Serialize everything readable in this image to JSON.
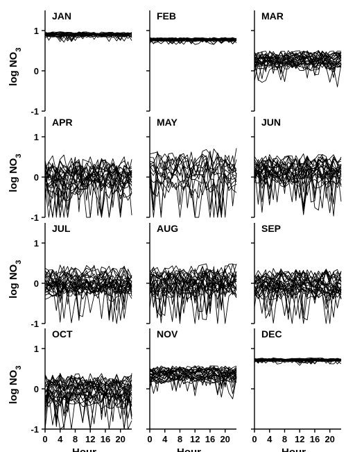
{
  "chart_data": {
    "type": "line",
    "y_axis_label": "log NO",
    "y_axis_label_subscript": "3",
    "x_axis_label": "Hour",
    "x_ticks": [
      0,
      4,
      8,
      12,
      16,
      20
    ],
    "y_ticks": [
      -1,
      0,
      1
    ],
    "xlim": [
      0,
      23
    ],
    "ylim": [
      -1,
      1.5
    ],
    "panels": [
      {
        "title": "JAN",
        "center": 0.9,
        "spread": 0.06,
        "n_series": 22
      },
      {
        "title": "FEB",
        "center": 0.78,
        "spread": 0.04,
        "n_series": 22
      },
      {
        "title": "MAR",
        "center": 0.25,
        "spread": 0.2,
        "n_series": 26
      },
      {
        "title": "APR",
        "center": 0.0,
        "spread": 0.45,
        "n_series": 24
      },
      {
        "title": "MAY",
        "center": 0.1,
        "spread": 0.5,
        "n_series": 14
      },
      {
        "title": "JUN",
        "center": 0.15,
        "spread": 0.35,
        "n_series": 24
      },
      {
        "title": "JUL",
        "center": 0.0,
        "spread": 0.35,
        "n_series": 26
      },
      {
        "title": "AUG",
        "center": 0.05,
        "spread": 0.35,
        "n_series": 24
      },
      {
        "title": "SEP",
        "center": 0.0,
        "spread": 0.32,
        "n_series": 26
      },
      {
        "title": "OCT",
        "center": -0.05,
        "spread": 0.35,
        "n_series": 26
      },
      {
        "title": "NOV",
        "center": 0.35,
        "spread": 0.18,
        "n_series": 26
      },
      {
        "title": "DEC",
        "center": 0.72,
        "spread": 0.04,
        "n_series": 22
      }
    ]
  }
}
